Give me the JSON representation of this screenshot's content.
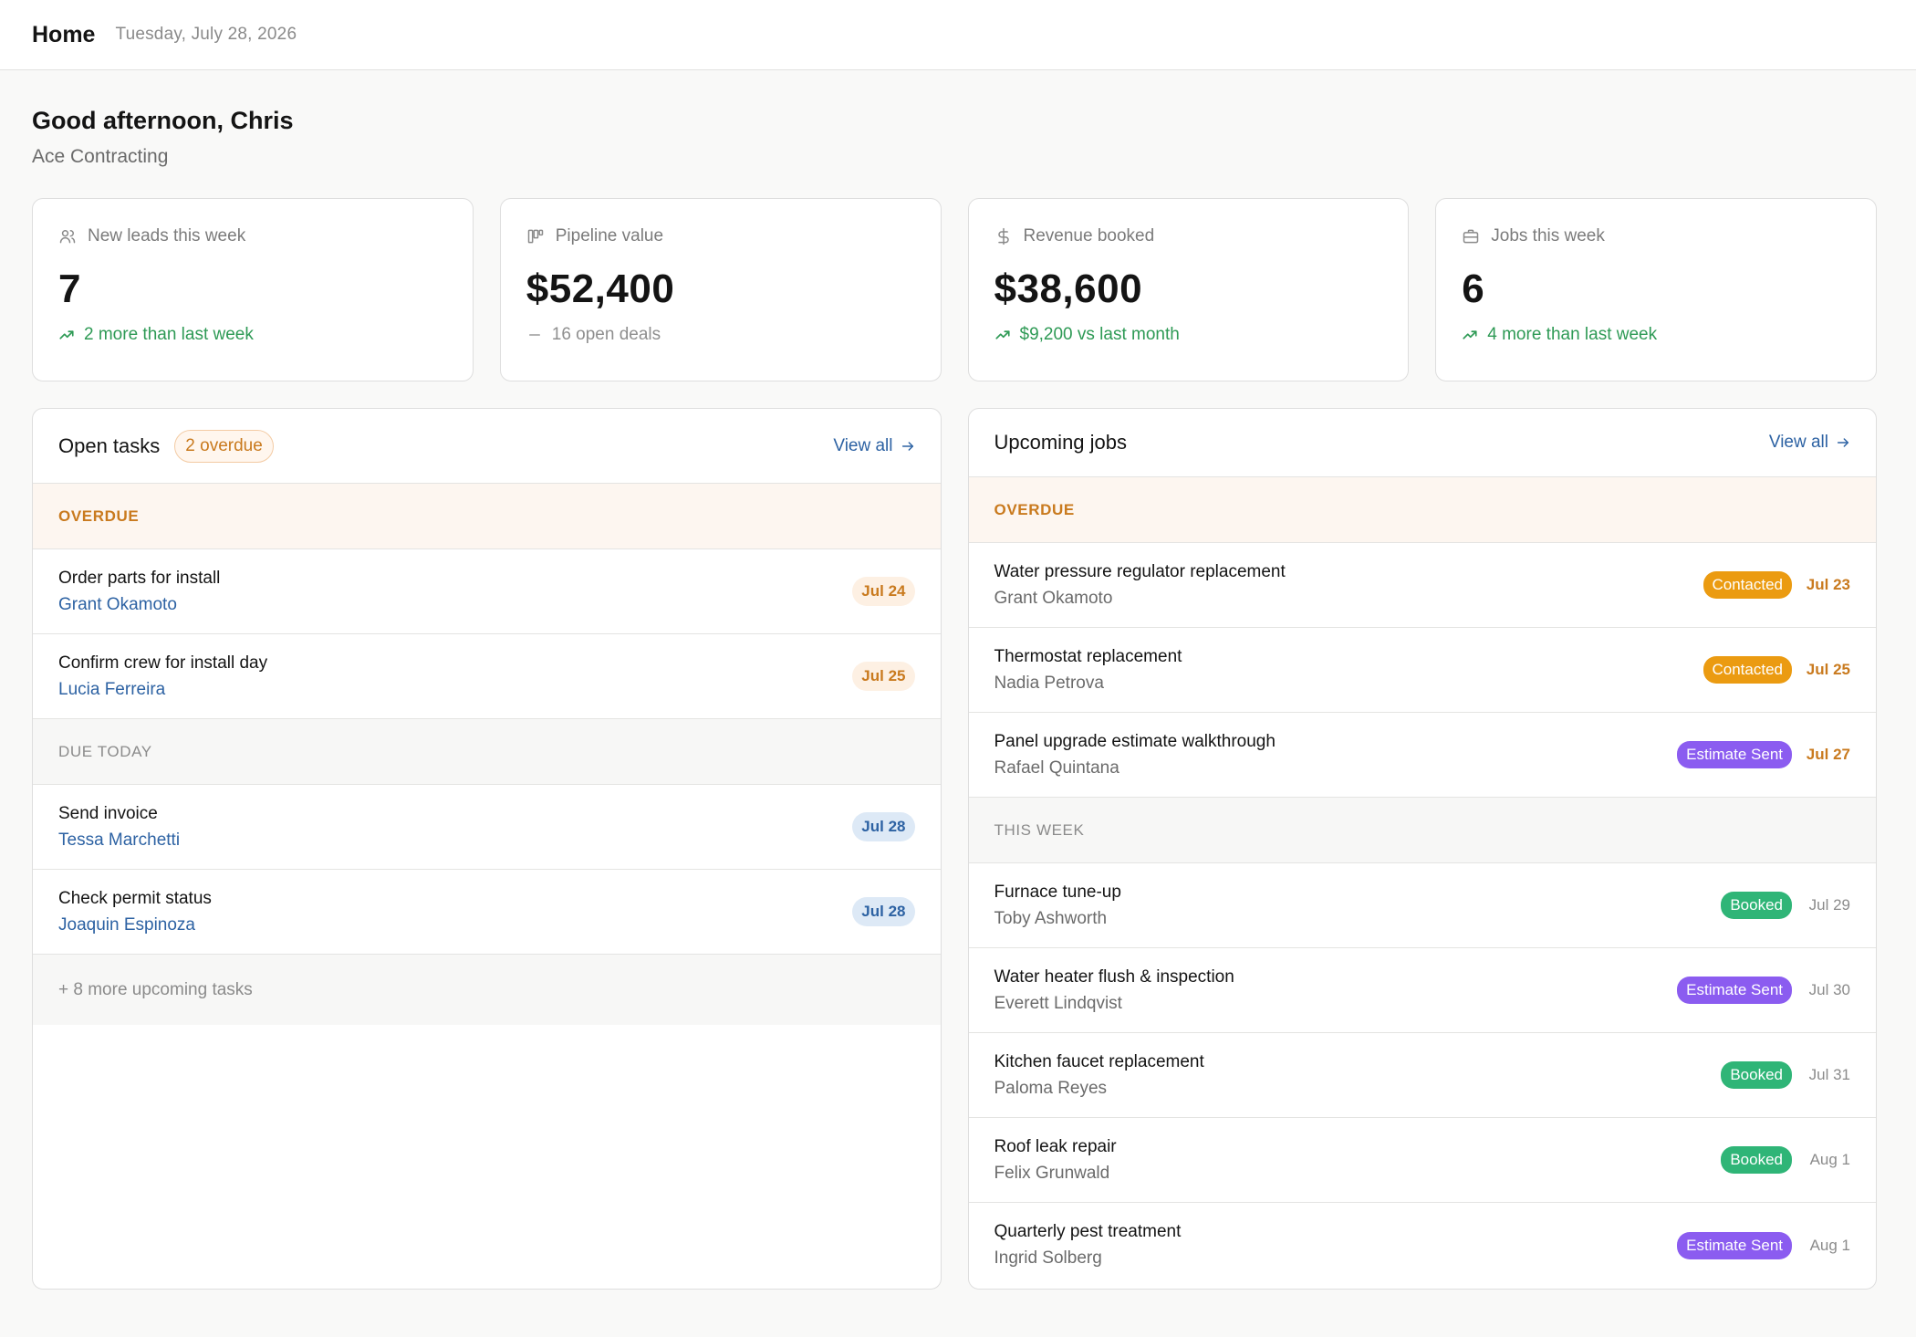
{
  "header": {
    "title": "Home",
    "date": "Tuesday, July 28, 2026"
  },
  "greeting": {
    "text": "Good afternoon, Chris",
    "company": "Ace Contracting"
  },
  "stats": [
    {
      "icon": "users-icon",
      "label": "New leads this week",
      "value": "7",
      "sub": "2 more than last week",
      "trend": "up"
    },
    {
      "icon": "pipeline-icon",
      "label": "Pipeline value",
      "value": "$52,400",
      "sub": "16 open deals",
      "trend": "flat"
    },
    {
      "icon": "dollar-icon",
      "label": "Revenue booked",
      "value": "$38,600",
      "sub": "$9,200 vs last month",
      "trend": "up"
    },
    {
      "icon": "briefcase-icon",
      "label": "Jobs this week",
      "value": "6",
      "sub": "4 more than last week",
      "trend": "up"
    }
  ],
  "tasks": {
    "title": "Open tasks",
    "overdue_badge": "2 overdue",
    "view_all": "View all",
    "sections": [
      {
        "label": "OVERDUE",
        "items": [
          {
            "title": "Order parts for install",
            "person": "Grant Okamoto",
            "date": "Jul 24"
          },
          {
            "title": "Confirm crew for install day",
            "person": "Lucia Ferreira",
            "date": "Jul 25"
          }
        ]
      },
      {
        "label": "DUE TODAY",
        "items": [
          {
            "title": "Send invoice",
            "person": "Tessa Marchetti",
            "date": "Jul 28"
          },
          {
            "title": "Check permit status",
            "person": "Joaquin Espinoza",
            "date": "Jul 28"
          }
        ]
      }
    ],
    "more": "+ 8 more upcoming tasks"
  },
  "jobs": {
    "title": "Upcoming jobs",
    "view_all": "View all",
    "sections": [
      {
        "label": "OVERDUE",
        "items": [
          {
            "title": "Water pressure regulator replacement",
            "person": "Grant Okamoto",
            "status": "Contacted",
            "date": "Jul 23"
          },
          {
            "title": "Thermostat replacement",
            "person": "Nadia Petrova",
            "status": "Contacted",
            "date": "Jul 25"
          },
          {
            "title": "Panel upgrade estimate walkthrough",
            "person": "Rafael Quintana",
            "status": "Estimate Sent",
            "date": "Jul 27"
          }
        ]
      },
      {
        "label": "THIS WEEK",
        "items": [
          {
            "title": "Furnace tune-up",
            "person": "Toby Ashworth",
            "status": "Booked",
            "date": "Jul 29"
          },
          {
            "title": "Water heater flush & inspection",
            "person": "Everett Lindqvist",
            "status": "Estimate Sent",
            "date": "Jul 30"
          },
          {
            "title": "Kitchen faucet replacement",
            "person": "Paloma Reyes",
            "status": "Booked",
            "date": "Jul 31"
          },
          {
            "title": "Roof leak repair",
            "person": "Felix Grunwald",
            "status": "Booked",
            "date": "Aug 1"
          },
          {
            "title": "Quarterly pest treatment",
            "person": "Ingrid Solberg",
            "status": "Estimate Sent",
            "date": "Aug 1"
          }
        ]
      }
    ]
  },
  "colors": {
    "accent_link": "#2d62a3",
    "positive": "#2e9a55",
    "overdue": "#c97a1e",
    "status_contacted": "#eb9b11",
    "status_estimate_sent": "#8b5cf0",
    "status_booked": "#2fb577"
  }
}
